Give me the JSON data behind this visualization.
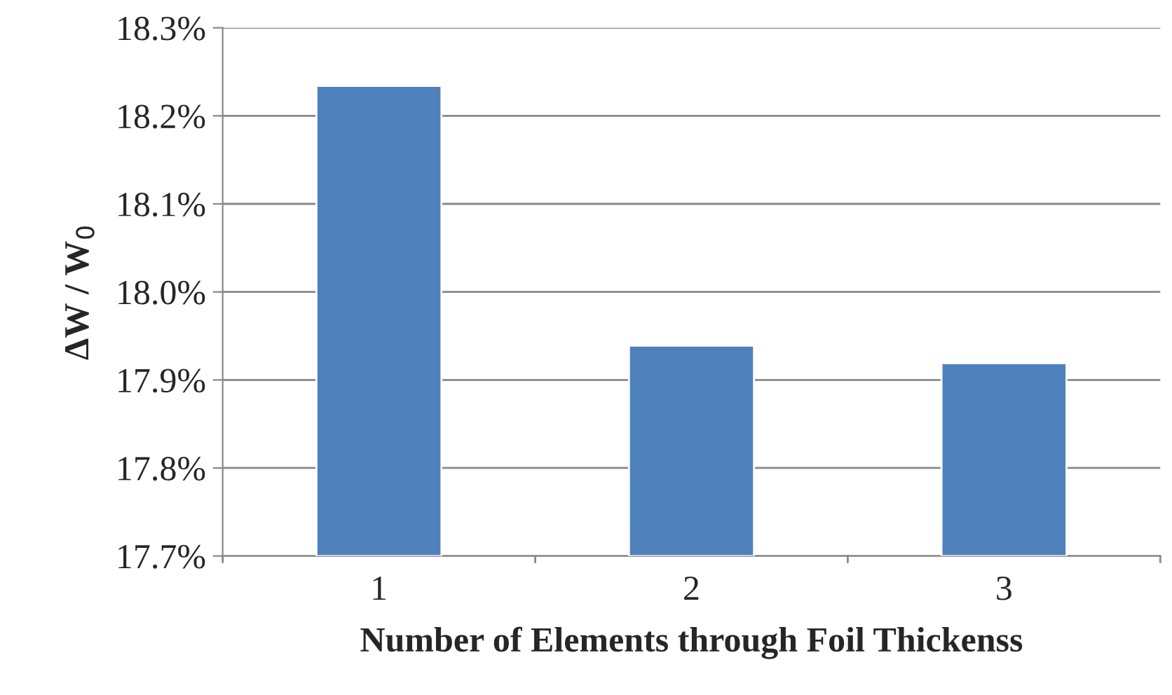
{
  "chart_data": {
    "type": "bar",
    "xlabel": "Number of Elements through Foil Thickenss",
    "ylabel": "ΔW / W$_{0}$",
    "categories": [
      "1",
      "2",
      "3"
    ],
    "values": [
      18.234,
      17.939,
      17.919
    ],
    "color": "#4f81bd",
    "ylim": [
      17.7,
      18.3
    ],
    "yticks": [
      {
        "value": 17.7,
        "label": "17.7%"
      },
      {
        "value": 17.8,
        "label": "17.8%"
      },
      {
        "value": 17.9,
        "label": "17.9%"
      },
      {
        "value": 18.0,
        "label": "18.0%"
      },
      {
        "value": 18.1,
        "label": "18.1%"
      },
      {
        "value": 18.2,
        "label": "18.2%"
      },
      {
        "value": 18.3,
        "label": "18.3%"
      }
    ],
    "grid": "y"
  }
}
